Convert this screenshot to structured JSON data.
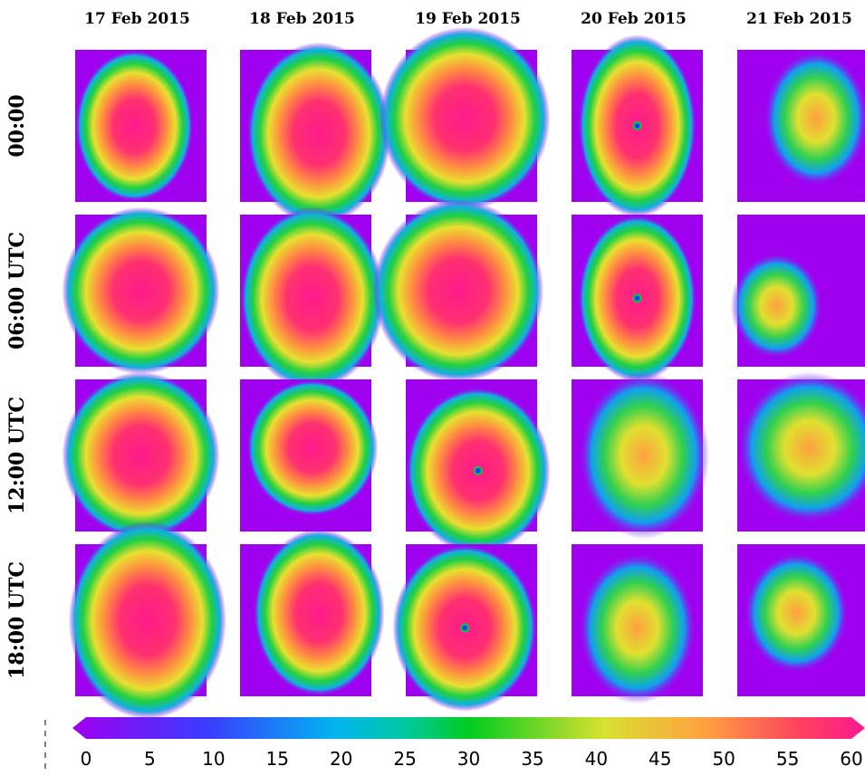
{
  "columns": [
    "17 Feb 2015",
    "18 Feb 2015",
    "19 Feb 2015",
    "20 Feb 2015",
    "21 Feb 2015"
  ],
  "rows": [
    "00:00",
    "06:00 UTC",
    "12:00 UTC",
    "18:00 UTC"
  ],
  "colorbar": {
    "lim": [
      0,
      60
    ],
    "ticks": [
      0,
      5,
      10,
      15,
      20,
      25,
      30,
      35,
      40,
      45,
      50,
      55,
      60
    ]
  }
}
